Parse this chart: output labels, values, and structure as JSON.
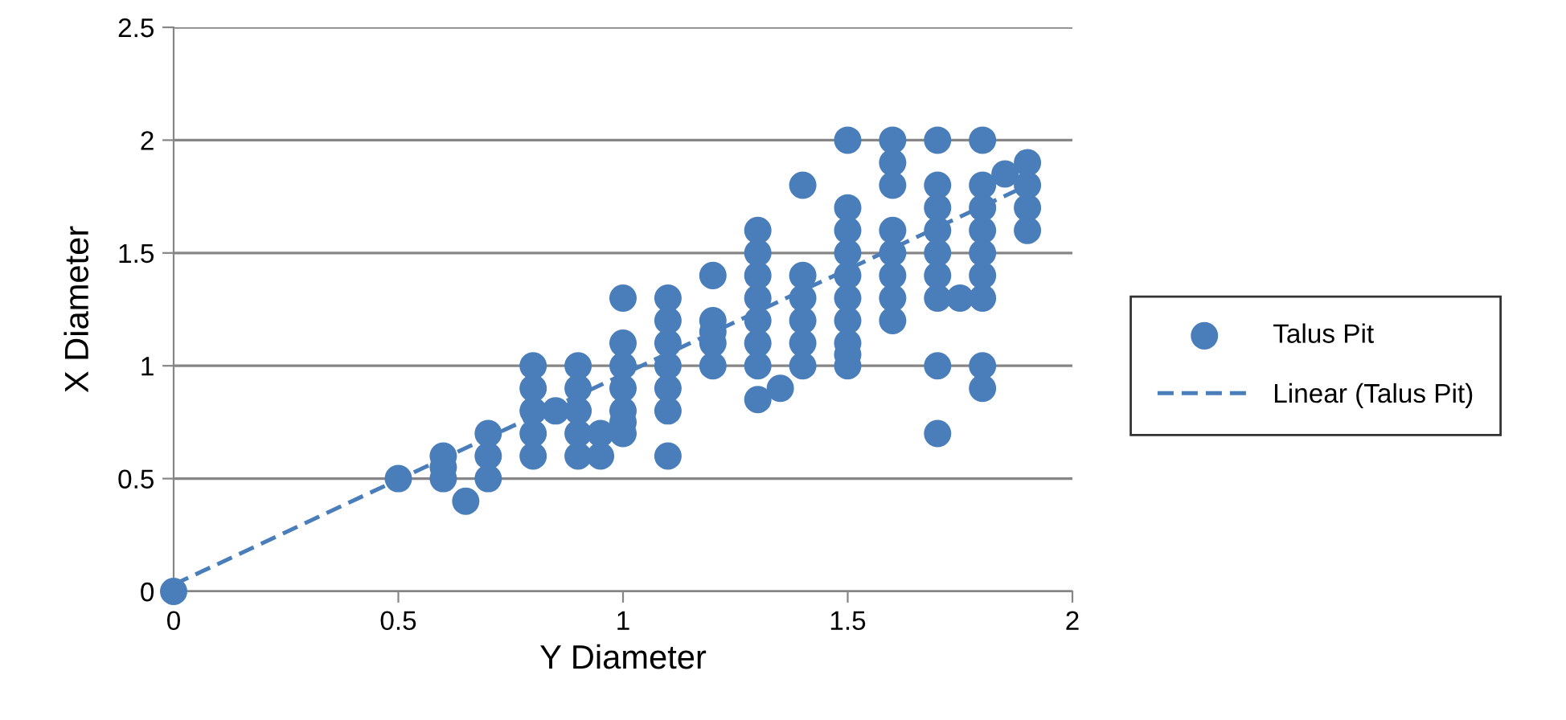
{
  "chart_data": {
    "type": "scatter",
    "xlabel": "Y Diameter",
    "ylabel": "X Diameter",
    "xlim": [
      0,
      2
    ],
    "xticks": [
      0,
      0.5,
      1,
      1.5,
      2
    ],
    "ylim": [
      0,
      2.5
    ],
    "yticks": [
      0,
      0.5,
      1,
      1.5,
      2,
      2.5
    ],
    "grid": "y",
    "legend": "right",
    "series": [
      {
        "name": "Talus Pit",
        "color": "#4a7ebb",
        "marker": "circle",
        "x": [
          0,
          0.5,
          0.6,
          0.6,
          0.6,
          0.65,
          0.7,
          0.7,
          0.7,
          0.8,
          0.8,
          0.8,
          0.8,
          0.8,
          0.85,
          0.9,
          0.9,
          0.9,
          0.9,
          0.9,
          0.95,
          0.95,
          1.0,
          1.0,
          1.0,
          1.0,
          1.0,
          1.0,
          1.0,
          1.1,
          1.1,
          1.1,
          1.1,
          1.1,
          1.1,
          1.1,
          1.2,
          1.2,
          1.2,
          1.2,
          1.2,
          1.3,
          1.3,
          1.3,
          1.3,
          1.3,
          1.3,
          1.3,
          1.3,
          1.35,
          1.4,
          1.4,
          1.4,
          1.4,
          1.4,
          1.4,
          1.5,
          1.5,
          1.5,
          1.5,
          1.5,
          1.5,
          1.5,
          1.5,
          1.5,
          1.5,
          1.6,
          1.6,
          1.6,
          1.6,
          1.6,
          1.6,
          1.6,
          1.6,
          1.7,
          1.7,
          1.7,
          1.7,
          1.7,
          1.7,
          1.7,
          1.7,
          1.7,
          1.75,
          1.8,
          1.8,
          1.8,
          1.8,
          1.8,
          1.8,
          1.8,
          1.8,
          1.8,
          1.85,
          1.9,
          1.9,
          1.9,
          1.9
        ],
        "values": [
          0,
          0.5,
          0.5,
          0.55,
          0.6,
          0.4,
          0.5,
          0.6,
          0.7,
          0.6,
          0.7,
          0.8,
          0.9,
          1.0,
          0.8,
          0.6,
          0.7,
          0.8,
          0.9,
          1.0,
          0.6,
          0.7,
          0.7,
          0.75,
          0.8,
          0.9,
          1.0,
          1.1,
          1.3,
          0.6,
          0.8,
          0.9,
          1.0,
          1.1,
          1.2,
          1.3,
          1.0,
          1.1,
          1.15,
          1.2,
          1.4,
          0.85,
          1.0,
          1.1,
          1.2,
          1.3,
          1.4,
          1.5,
          1.6,
          0.9,
          1.0,
          1.1,
          1.2,
          1.3,
          1.4,
          1.8,
          1.0,
          1.05,
          1.1,
          1.2,
          1.3,
          1.4,
          1.5,
          1.6,
          1.7,
          2.0,
          1.2,
          1.3,
          1.4,
          1.5,
          1.6,
          1.8,
          1.9,
          2.0,
          0.7,
          1.0,
          1.3,
          1.4,
          1.5,
          1.6,
          1.7,
          1.8,
          2.0,
          1.3,
          0.9,
          1.0,
          1.3,
          1.4,
          1.5,
          1.6,
          1.7,
          1.8,
          2.0,
          1.85,
          1.6,
          1.7,
          1.8,
          1.9
        ]
      },
      {
        "name": "Linear (Talus Pit)",
        "color": "#4a7ebb",
        "type": "line",
        "marker": "none",
        "line_style": "dashed",
        "x": [
          0,
          1.9
        ],
        "values": [
          0.03,
          1.8
        ]
      }
    ]
  }
}
